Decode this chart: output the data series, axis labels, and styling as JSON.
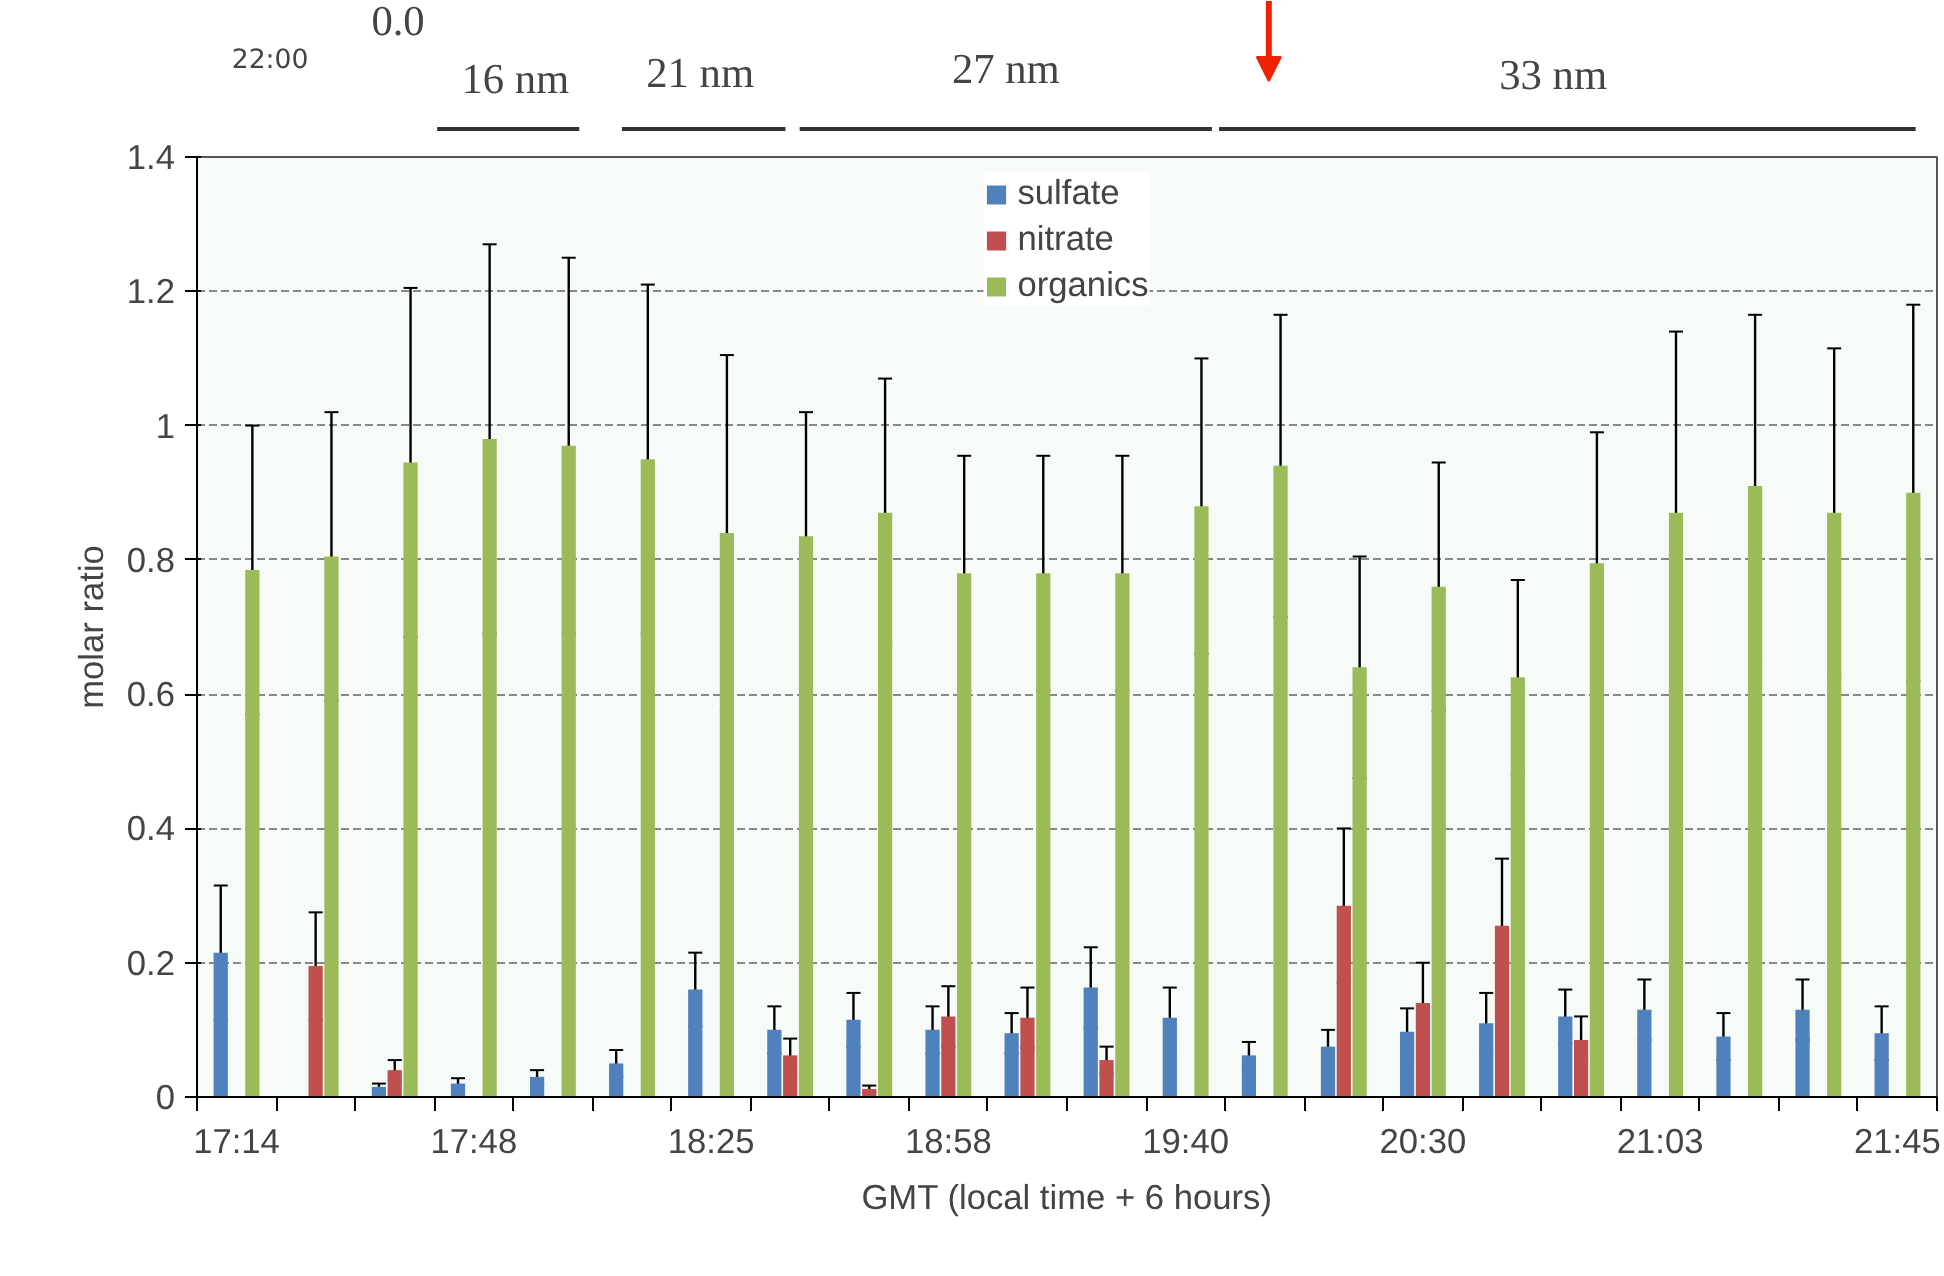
{
  "chart_data": {
    "type": "bar",
    "xlabel": "GMT (local time + 6 hours)",
    "ylabel": "molar ratio",
    "categories": [
      "17:14",
      null,
      null,
      "17:48",
      null,
      null,
      "18:25",
      null,
      null,
      "18:58",
      null,
      null,
      "19:40",
      null,
      null,
      "20:30",
      null,
      null,
      "21:03",
      null,
      null,
      "21:45"
    ],
    "series": [
      {
        "name": "sulfate",
        "color": "#4f81bd",
        "values": [
          0.215,
          null,
          0.015,
          0.02,
          0.03,
          0.05,
          0.16,
          0.1,
          0.115,
          0.1,
          0.095,
          0.163,
          0.118,
          0.062,
          0.075,
          0.097,
          0.11,
          0.12,
          0.13,
          0.09,
          0.13,
          0.095
        ],
        "errors": [
          0.1,
          null,
          0.005,
          0.008,
          0.01,
          0.02,
          0.055,
          0.035,
          0.04,
          0.035,
          0.03,
          0.06,
          0.045,
          0.02,
          0.025,
          0.035,
          0.045,
          0.04,
          0.045,
          0.035,
          0.045,
          0.04
        ]
      },
      {
        "name": "nitrate",
        "color": "#c0504d",
        "values": [
          null,
          0.195,
          0.04,
          null,
          null,
          null,
          null,
          0.062,
          0.012,
          0.12,
          0.118,
          0.055,
          null,
          null,
          0.285,
          0.14,
          0.255,
          0.085,
          null,
          null,
          null,
          null
        ],
        "errors": [
          null,
          0.08,
          0.015,
          null,
          null,
          null,
          null,
          0.025,
          0.005,
          0.045,
          0.045,
          0.02,
          null,
          null,
          0.115,
          0.06,
          0.1,
          0.035,
          null,
          null,
          null,
          null
        ]
      },
      {
        "name": "organics",
        "color": "#9bbb59",
        "values": [
          0.785,
          0.805,
          0.945,
          0.98,
          0.97,
          0.95,
          0.84,
          0.835,
          0.87,
          0.78,
          0.78,
          0.78,
          0.88,
          0.94,
          0.64,
          0.76,
          0.625,
          0.795,
          0.87,
          0.91,
          0.87,
          0.9
        ],
        "errors": [
          0.215,
          0.215,
          0.26,
          0.29,
          0.28,
          0.26,
          0.265,
          0.185,
          0.2,
          0.175,
          0.175,
          0.175,
          0.22,
          0.225,
          0.165,
          0.185,
          0.145,
          0.195,
          0.27,
          0.255,
          0.245,
          0.28
        ]
      }
    ],
    "ylim": [
      0,
      1.4
    ],
    "yticks": [
      0,
      0.2,
      0.4,
      0.6,
      0.8,
      1,
      1.2,
      1.4
    ],
    "grid": "y",
    "legend": "top",
    "annotations": [
      "22:00",
      "0.0",
      "16 nm",
      "21 nm",
      "27 nm",
      "33 nm"
    ]
  }
}
